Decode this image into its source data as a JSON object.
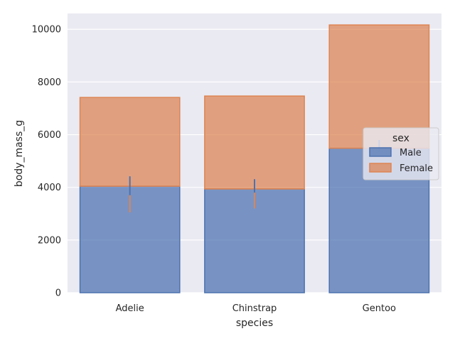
{
  "chart_data": {
    "type": "bar",
    "stacked": true,
    "categories": [
      "Adelie",
      "Chinstrap",
      "Gentoo"
    ],
    "xlabel": "species",
    "ylabel": "body_mass_g",
    "ylim": [
      0,
      10600
    ],
    "yticks": [
      0,
      2000,
      4000,
      6000,
      8000,
      10000
    ],
    "grid": true,
    "legend": {
      "title": "sex",
      "placement": "center-right"
    },
    "series": [
      {
        "name": "Male",
        "color": "#4c72b0",
        "values": [
          4043,
          3939,
          5485
        ],
        "ci_low": [
          3700,
          3750,
          5370
        ],
        "ci_high": [
          4420,
          4310,
          5800
        ]
      },
      {
        "name": "Female",
        "color": "#dd8452",
        "values": [
          3369,
          3527,
          4680
        ],
        "ci_low": [
          3050,
          3200,
          null
        ],
        "ci_high": [
          3700,
          3800,
          null
        ]
      }
    ]
  }
}
